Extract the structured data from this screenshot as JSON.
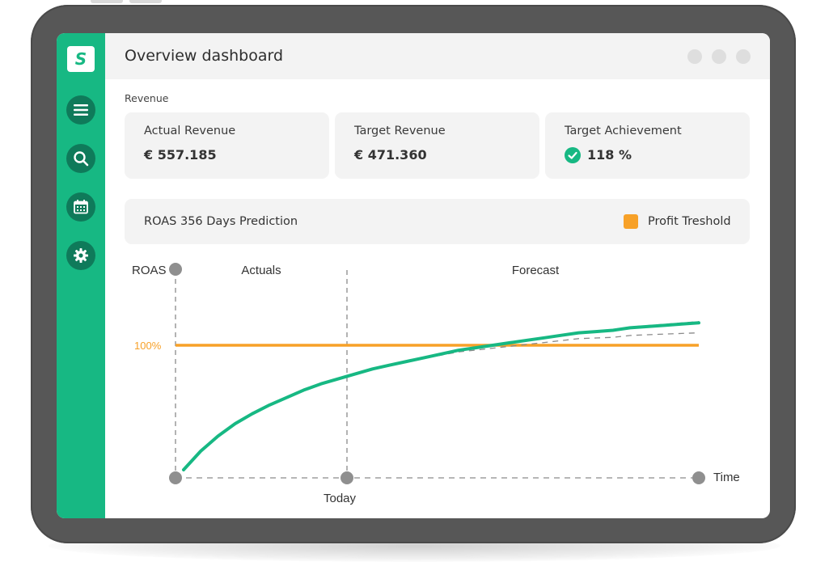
{
  "window": {
    "title": "Overview dashboard"
  },
  "sidebar": {
    "logo_letter": "S",
    "items": [
      {
        "name": "menu",
        "icon": "hamburger-icon"
      },
      {
        "name": "search",
        "icon": "search-icon"
      },
      {
        "name": "calendar",
        "icon": "calendar-icon"
      },
      {
        "name": "settings",
        "icon": "gear-icon"
      }
    ]
  },
  "revenue": {
    "section_label": "Revenue",
    "cards": [
      {
        "label": "Actual Revenue",
        "value": "€ 557.185"
      },
      {
        "label": "Target Revenue",
        "value": "€ 471.360"
      },
      {
        "label": "Target Achievement",
        "value": "118 %",
        "icon": "check-circle-icon"
      }
    ]
  },
  "roas_panel": {
    "title": "ROAS 356 Days Prediction",
    "legend_label": "Profit Treshold"
  },
  "colors": {
    "accent": "#17b883",
    "threshold": "#f7a128",
    "panel": "#f3f3f3",
    "device": "#575757"
  },
  "chart_data": {
    "type": "line",
    "ylabel": "ROAS",
    "xlabel": "Time",
    "regions": [
      "Actuals",
      "Forecast"
    ],
    "x_markers": [
      "Today"
    ],
    "threshold": {
      "label": "100%",
      "value": 100
    },
    "series": [
      {
        "values": [
          0,
          15,
          27,
          37,
          45,
          52,
          58,
          64,
          69,
          73,
          77,
          81,
          84,
          87,
          90,
          93,
          96,
          98,
          100,
          102,
          104,
          106,
          108,
          110,
          111,
          112,
          114,
          115,
          116,
          117,
          118
        ]
      }
    ],
    "today_index": 10,
    "forecast_band": {
      "start_index": 13,
      "upper_end": 119,
      "lower_end": 110
    },
    "ylim": [
      -20,
      140
    ]
  }
}
